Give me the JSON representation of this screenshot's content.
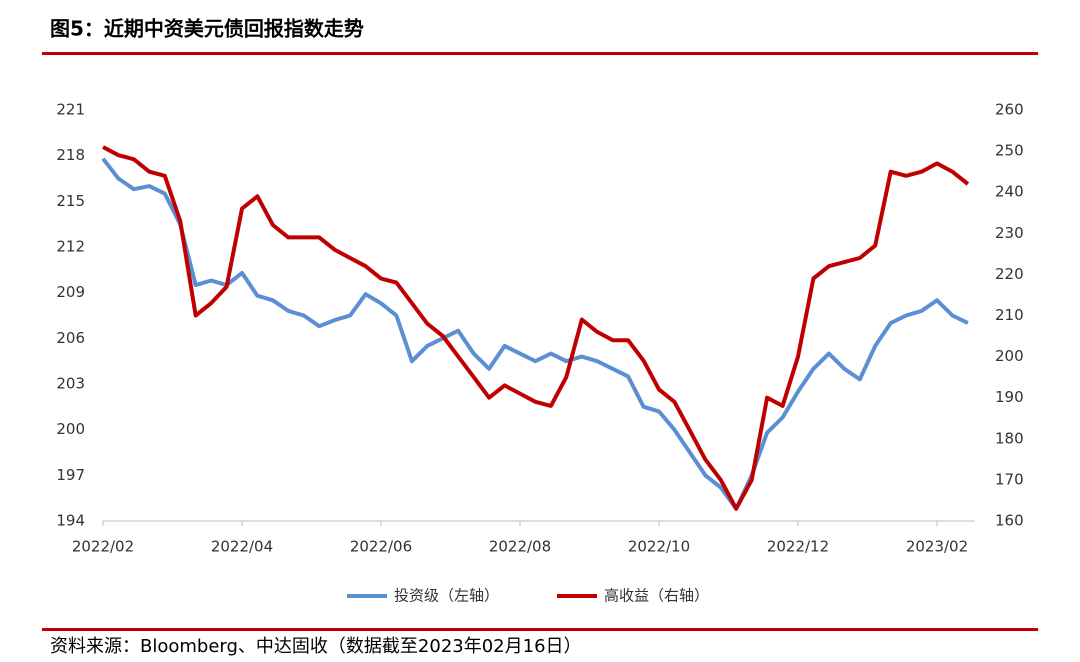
{
  "chart_data": {
    "type": "line",
    "title": "图5：近期中资美元债回报指数走势",
    "source": "资料来源：Bloomberg、中达固收（数据截至2023年02月16日）",
    "categories": [
      "2022/02",
      null,
      null,
      null,
      null,
      null,
      null,
      null,
      null,
      "2022/04",
      null,
      null,
      null,
      null,
      null,
      null,
      null,
      null,
      "2022/06",
      null,
      null,
      null,
      null,
      null,
      null,
      null,
      null,
      "2022/08",
      null,
      null,
      null,
      null,
      null,
      null,
      null,
      null,
      "2022/10",
      null,
      null,
      null,
      null,
      null,
      null,
      null,
      null,
      "2022/12",
      null,
      null,
      null,
      null,
      null,
      null,
      null,
      null,
      "2023/02",
      null,
      null
    ],
    "series": [
      {
        "name": "投资级（左轴）",
        "color": "#5b8fd4",
        "axis": "y",
        "values": [
          217.8,
          216.5,
          215.8,
          216.0,
          215.5,
          213.5,
          209.5,
          209.8,
          209.5,
          210.3,
          208.8,
          208.5,
          207.8,
          207.5,
          206.8,
          207.2,
          207.5,
          208.9,
          208.3,
          207.5,
          204.5,
          205.5,
          206.0,
          206.5,
          205.0,
          204.0,
          205.5,
          205.0,
          204.5,
          205.0,
          204.5,
          204.8,
          204.5,
          204.0,
          203.5,
          201.5,
          201.2,
          200.0,
          198.5,
          197.0,
          196.2,
          194.8,
          197.0,
          199.8,
          200.8,
          202.5,
          204.0,
          205.0,
          204.0,
          203.3,
          205.5,
          207.0,
          207.5,
          207.8,
          208.5,
          207.5,
          207.0
        ]
      },
      {
        "name": "高收益（右轴）",
        "color": "#c00000",
        "axis": "y2",
        "values": [
          251,
          249,
          248,
          245,
          244,
          233,
          210,
          213,
          217,
          236,
          239,
          232,
          229,
          229,
          229,
          226,
          224,
          222,
          219,
          218,
          213,
          208,
          205,
          200,
          195,
          190,
          193,
          191,
          189,
          188,
          195,
          209,
          206,
          204,
          204,
          199,
          192,
          189,
          182,
          175,
          170,
          163,
          170,
          190,
          188,
          200,
          219,
          222,
          223,
          224,
          227,
          245,
          244,
          245,
          247,
          245,
          242
        ]
      }
    ],
    "ylim": [
      194,
      221
    ],
    "yticks": [
      194,
      197,
      200,
      203,
      206,
      209,
      212,
      215,
      218,
      221
    ],
    "y2lim": [
      160,
      260
    ],
    "y2ticks": [
      160,
      170,
      180,
      190,
      200,
      210,
      220,
      230,
      240,
      250,
      260
    ]
  }
}
